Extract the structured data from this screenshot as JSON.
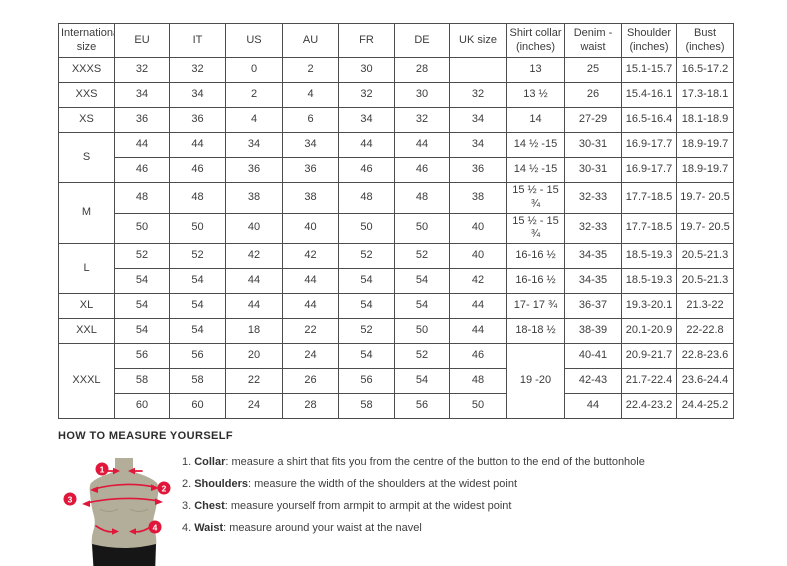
{
  "colors": {
    "accent_red": "#e0173a",
    "mannequin": "#b2ae99",
    "mannequin_shade": "#a09c86",
    "shorts_black": "#161616",
    "table_border": "#4d4d4d",
    "text": "#3c3c3c"
  },
  "size_chart": {
    "headers": [
      "International size",
      "EU",
      "IT",
      "US",
      "AU",
      "FR",
      "DE",
      "UK size",
      "Shirt collar (inches)",
      "Denim - waist",
      "Shoulder (inches)",
      "Bust (inches)"
    ],
    "rows": [
      {
        "cells": [
          {
            "t": "XXXS"
          },
          {
            "t": "32"
          },
          {
            "t": "32"
          },
          {
            "t": "0"
          },
          {
            "t": "2"
          },
          {
            "t": "30"
          },
          {
            "t": "28"
          },
          {
            "t": ""
          },
          {
            "t": "13"
          },
          {
            "t": "25"
          },
          {
            "t": "15.1-15.7"
          },
          {
            "t": "16.5-17.2"
          }
        ]
      },
      {
        "cells": [
          {
            "t": "XXS"
          },
          {
            "t": "34"
          },
          {
            "t": "34"
          },
          {
            "t": "2"
          },
          {
            "t": "4"
          },
          {
            "t": "32"
          },
          {
            "t": "30"
          },
          {
            "t": "32"
          },
          {
            "t": "13 ½"
          },
          {
            "t": "26"
          },
          {
            "t": "15.4-16.1"
          },
          {
            "t": "17.3-18.1"
          }
        ]
      },
      {
        "cells": [
          {
            "t": "XS"
          },
          {
            "t": "36"
          },
          {
            "t": "36"
          },
          {
            "t": "4"
          },
          {
            "t": "6"
          },
          {
            "t": "34"
          },
          {
            "t": "32"
          },
          {
            "t": "34"
          },
          {
            "t": "14"
          },
          {
            "t": "27-29"
          },
          {
            "t": "16.5-16.4"
          },
          {
            "t": "18.1-18.9"
          }
        ]
      },
      {
        "cells": [
          {
            "t": "S",
            "rs": 2
          },
          {
            "t": "44"
          },
          {
            "t": "44"
          },
          {
            "t": "34"
          },
          {
            "t": "34"
          },
          {
            "t": "44"
          },
          {
            "t": "44"
          },
          {
            "t": "34"
          },
          {
            "t": "14 ½ -15"
          },
          {
            "t": "30-31"
          },
          {
            "t": "16.9-17.7"
          },
          {
            "t": "18.9-19.7"
          }
        ]
      },
      {
        "cells": [
          {
            "t": "46"
          },
          {
            "t": "46"
          },
          {
            "t": "36"
          },
          {
            "t": "36"
          },
          {
            "t": "46"
          },
          {
            "t": "46"
          },
          {
            "t": "36"
          },
          {
            "t": "14 ½ -15"
          },
          {
            "t": "30-31"
          },
          {
            "t": "16.9-17.7"
          },
          {
            "t": "18.9-19.7"
          }
        ]
      },
      {
        "cells": [
          {
            "t": "M",
            "rs": 2
          },
          {
            "t": "48"
          },
          {
            "t": "48"
          },
          {
            "t": "38"
          },
          {
            "t": "38"
          },
          {
            "t": "48"
          },
          {
            "t": "48"
          },
          {
            "t": "38"
          },
          {
            "t": "15 ½ - 15 ¾"
          },
          {
            "t": "32-33"
          },
          {
            "t": "17.7-18.5"
          },
          {
            "t": "19.7- 20.5"
          }
        ]
      },
      {
        "cells": [
          {
            "t": "50"
          },
          {
            "t": "50"
          },
          {
            "t": "40"
          },
          {
            "t": "40"
          },
          {
            "t": "50"
          },
          {
            "t": "50"
          },
          {
            "t": "40"
          },
          {
            "t": "15 ½ - 15 ¾"
          },
          {
            "t": "32-33"
          },
          {
            "t": "17.7-18.5"
          },
          {
            "t": "19.7- 20.5"
          }
        ]
      },
      {
        "cells": [
          {
            "t": "L",
            "rs": 2
          },
          {
            "t": "52"
          },
          {
            "t": "52"
          },
          {
            "t": "42"
          },
          {
            "t": "42"
          },
          {
            "t": "52"
          },
          {
            "t": "52"
          },
          {
            "t": "40"
          },
          {
            "t": "16-16 ½"
          },
          {
            "t": "34-35"
          },
          {
            "t": "18.5-19.3"
          },
          {
            "t": "20.5-21.3"
          }
        ]
      },
      {
        "cells": [
          {
            "t": "54"
          },
          {
            "t": "54"
          },
          {
            "t": "44"
          },
          {
            "t": "44"
          },
          {
            "t": "54"
          },
          {
            "t": "54"
          },
          {
            "t": "42"
          },
          {
            "t": "16-16 ½"
          },
          {
            "t": "34-35"
          },
          {
            "t": "18.5-19.3"
          },
          {
            "t": "20.5-21.3"
          }
        ]
      },
      {
        "cells": [
          {
            "t": "XL"
          },
          {
            "t": "54"
          },
          {
            "t": "54"
          },
          {
            "t": "44"
          },
          {
            "t": "44"
          },
          {
            "t": "54"
          },
          {
            "t": "54"
          },
          {
            "t": "44"
          },
          {
            "t": "17- 17 ¾"
          },
          {
            "t": "36-37"
          },
          {
            "t": "19.3-20.1"
          },
          {
            "t": "21.3-22"
          }
        ]
      },
      {
        "cells": [
          {
            "t": "XXL"
          },
          {
            "t": "54"
          },
          {
            "t": "54"
          },
          {
            "t": "18"
          },
          {
            "t": "22"
          },
          {
            "t": "52"
          },
          {
            "t": "50"
          },
          {
            "t": "44"
          },
          {
            "t": "18-18 ½"
          },
          {
            "t": "38-39"
          },
          {
            "t": "20.1-20.9"
          },
          {
            "t": "22-22.8"
          }
        ]
      },
      {
        "cells": [
          {
            "t": "XXXL",
            "rs": 3
          },
          {
            "t": "56"
          },
          {
            "t": "56"
          },
          {
            "t": "20"
          },
          {
            "t": "24"
          },
          {
            "t": "54"
          },
          {
            "t": "52"
          },
          {
            "t": "46"
          },
          {
            "t": "19 -20",
            "rs": 3
          },
          {
            "t": "40-41"
          },
          {
            "t": "20.9-21.7"
          },
          {
            "t": "22.8-23.6"
          }
        ]
      },
      {
        "cells": [
          {
            "t": "58"
          },
          {
            "t": "58"
          },
          {
            "t": "22"
          },
          {
            "t": "26"
          },
          {
            "t": "56"
          },
          {
            "t": "54"
          },
          {
            "t": "48"
          },
          {
            "t": "42-43"
          },
          {
            "t": "21.7-22.4"
          },
          {
            "t": "23.6-24.4"
          }
        ]
      },
      {
        "cells": [
          {
            "t": "60"
          },
          {
            "t": "60"
          },
          {
            "t": "24"
          },
          {
            "t": "28"
          },
          {
            "t": "58"
          },
          {
            "t": "56"
          },
          {
            "t": "50"
          },
          {
            "t": "44"
          },
          {
            "t": "22.4-23.2"
          },
          {
            "t": "24.4-25.2"
          }
        ]
      }
    ]
  },
  "measure_guide": {
    "title": "HOW TO MEASURE YOURSELF",
    "figure_badges": [
      "1",
      "2",
      "3",
      "4"
    ],
    "steps": [
      {
        "num": "1.",
        "label": "Collar",
        "text": ": measure a shirt that fits you from the centre of the button to the end of the buttonhole"
      },
      {
        "num": "2.",
        "label": "Shoulders",
        "text": ": measure the width of the shoulders at the widest point"
      },
      {
        "num": "3.",
        "label": "Chest",
        "text": ": measure yourself from armpit to armpit at the widest point"
      },
      {
        "num": "4.",
        "label": "Waist",
        "text": ": measure around your waist at the navel"
      }
    ]
  }
}
